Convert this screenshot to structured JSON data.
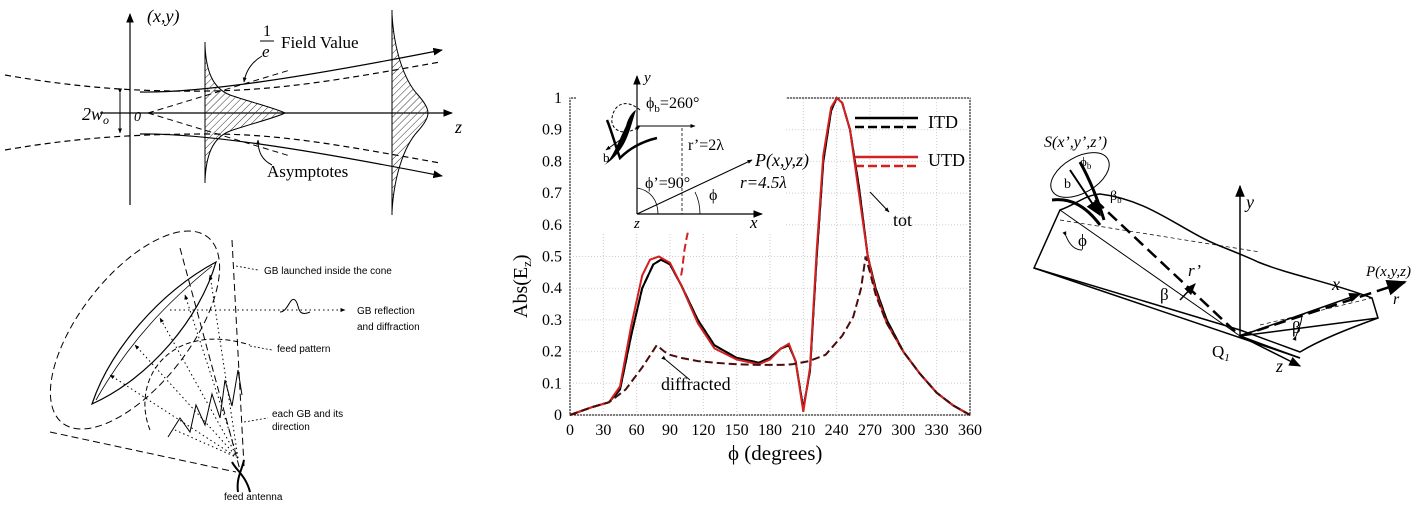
{
  "panel1": {
    "axis_y": "(x,y)",
    "axis_z": "z",
    "origin": "0",
    "waist": "2w",
    "waist_sub": "o",
    "frac_num": "1",
    "frac_den": "e",
    "field_value": "Field Value",
    "asymptotes": "Asymptotes"
  },
  "panel2": {
    "launched": "GB launched inside the cone",
    "reflection_1": "GB reflection",
    "reflection_2": "and diffraction",
    "feed_pattern": "feed pattern",
    "each_gb_1": "each GB and its",
    "each_gb_2": "direction",
    "feed_antenna": "feed antenna"
  },
  "panel3": {
    "inset": {
      "y": "y",
      "x": "x",
      "z": "z",
      "b": "b",
      "phi_b": "ϕ",
      "phi_b_sub": "b",
      "phi_b_val": "=260°",
      "r_prime": "r’=2λ",
      "phi_prime": "ϕ’=90°",
      "phi": "ϕ",
      "point": "P(x,y,z)",
      "r": "r=4.5λ"
    },
    "annot_tot": "tot",
    "annot_diffracted": "diffracted",
    "colors": {
      "itd": "#000000",
      "utd": "#d42020",
      "diffr": "#4a0c0c"
    }
  },
  "panel4": {
    "source": "S(x’,y’,z’)",
    "phi_b": "ϕ",
    "phi_b_sub": "b",
    "b_hat": "b",
    "beta_b": "β",
    "beta_b_sub": "b",
    "phi": "ϕ",
    "r_prime": "r’",
    "beta": "β",
    "q": "Q",
    "q_sub": "1",
    "y": "y",
    "x": "x",
    "z": "z",
    "point": "P(x,y,z)",
    "r": "r",
    "beta2": "β"
  },
  "chart_data": {
    "type": "line",
    "title": "",
    "xlabel": "ϕ (degrees)",
    "ylabel": "Abs(E",
    "ylabel_sub": "z",
    "ylabel_close": ")",
    "xlim": [
      0,
      360
    ],
    "ylim": [
      0,
      1
    ],
    "grid": true,
    "legend_position": "top-right",
    "x_ticks": [
      "0",
      "30",
      "60",
      "90",
      "120",
      "150",
      "180",
      "210",
      "240",
      "270",
      "300",
      "330",
      "360"
    ],
    "y_ticks": [
      "0",
      "0.1",
      "0.2",
      "0.3",
      "0.4",
      "0.5",
      "0.6",
      "0.7",
      "0.8",
      "0.9",
      "1"
    ],
    "legend": [
      {
        "label": "ITD",
        "color": "#000000"
      },
      {
        "label": "UTD",
        "color": "#d42020"
      }
    ],
    "series": [
      {
        "name": "ITD",
        "style": "solid",
        "color": "#000000",
        "x": [
          0,
          20,
          35,
          45,
          55,
          65,
          75,
          82,
          90,
          100,
          115,
          130,
          150,
          170,
          180,
          190,
          197,
          203,
          210,
          216,
          222,
          228,
          235,
          240,
          245,
          252,
          260,
          268,
          275,
          285,
          300,
          315,
          330,
          345,
          360
        ],
        "y": [
          0,
          0.025,
          0.04,
          0.08,
          0.25,
          0.4,
          0.475,
          0.49,
          0.475,
          0.41,
          0.3,
          0.22,
          0.18,
          0.165,
          0.18,
          0.21,
          0.22,
          0.17,
          0.02,
          0.14,
          0.5,
          0.8,
          0.96,
          1.0,
          0.985,
          0.9,
          0.72,
          0.5,
          0.4,
          0.3,
          0.2,
          0.13,
          0.07,
          0.03,
          0.0
        ]
      },
      {
        "name": "ITD",
        "style": "dashed",
        "color": "#000000",
        "x": [
          0,
          20,
          35,
          45,
          55,
          65,
          75,
          82,
          90,
          100,
          115,
          130,
          150,
          170,
          180,
          190,
          197,
          203,
          210,
          216,
          222,
          228,
          235,
          240,
          245,
          252,
          260,
          268,
          275,
          285,
          300,
          315,
          330,
          345,
          360
        ],
        "y": [
          0,
          0.025,
          0.04,
          0.08,
          0.25,
          0.4,
          0.475,
          0.49,
          0.475,
          0.41,
          0.3,
          0.22,
          0.18,
          0.165,
          0.18,
          0.21,
          0.22,
          0.17,
          0.02,
          0.14,
          0.5,
          0.8,
          0.96,
          1.0,
          0.985,
          0.9,
          0.72,
          0.5,
          0.4,
          0.3,
          0.2,
          0.13,
          0.07,
          0.03,
          0.0
        ]
      },
      {
        "name": "UTD",
        "style": "solid",
        "color": "#d42020",
        "x": [
          0,
          20,
          35,
          45,
          55,
          65,
          72,
          80,
          90,
          100,
          115,
          130,
          150,
          170,
          180,
          190,
          197,
          203,
          210,
          216,
          222,
          228,
          235,
          240,
          245,
          252,
          260,
          268,
          275,
          285,
          300,
          315,
          330,
          345,
          360
        ],
        "y": [
          0,
          0.025,
          0.04,
          0.09,
          0.28,
          0.44,
          0.49,
          0.5,
          0.48,
          0.41,
          0.29,
          0.21,
          0.175,
          0.16,
          0.175,
          0.21,
          0.225,
          0.17,
          0.01,
          0.15,
          0.52,
          0.82,
          0.97,
          1.0,
          0.985,
          0.9,
          0.7,
          0.5,
          0.39,
          0.29,
          0.2,
          0.13,
          0.07,
          0.03,
          0.0
        ]
      },
      {
        "name": "UTD",
        "style": "dashed",
        "color": "#d42020",
        "x": [
          100,
          101,
          102,
          103,
          104,
          105,
          106
        ],
        "y": [
          0.44,
          0.46,
          0.49,
          0.52,
          0.54,
          0.56,
          0.575
        ]
      },
      {
        "name": "",
        "style": "dashed",
        "color": "#4a0c0c",
        "x": [
          0,
          20,
          35,
          50,
          65,
          78,
          85,
          90,
          100,
          115,
          130,
          150,
          170,
          180,
          190,
          200,
          215,
          230,
          245,
          255,
          262,
          266,
          270,
          275,
          285,
          300,
          315,
          330,
          345,
          360
        ],
        "y": [
          0,
          0.025,
          0.04,
          0.08,
          0.15,
          0.22,
          0.2,
          0.19,
          0.18,
          0.17,
          0.165,
          0.16,
          0.158,
          0.158,
          0.158,
          0.16,
          0.17,
          0.19,
          0.25,
          0.31,
          0.4,
          0.5,
          0.45,
          0.38,
          0.29,
          0.2,
          0.13,
          0.07,
          0.03,
          0.0
        ]
      }
    ]
  }
}
